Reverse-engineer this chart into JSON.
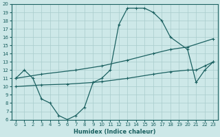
{
  "xlabel": "Humidex (Indice chaleur)",
  "bg_color": "#cde8e8",
  "grid_color": "#a8cccc",
  "line_color": "#1a6060",
  "xlim": [
    -0.5,
    23.5
  ],
  "ylim": [
    6,
    20
  ],
  "xticks": [
    0,
    1,
    2,
    3,
    4,
    5,
    6,
    7,
    8,
    9,
    10,
    11,
    12,
    13,
    14,
    15,
    16,
    17,
    18,
    19,
    20,
    21,
    22,
    23
  ],
  "yticks": [
    6,
    7,
    8,
    9,
    10,
    11,
    12,
    13,
    14,
    15,
    16,
    17,
    18,
    19,
    20
  ],
  "curve1_x": [
    0,
    1,
    2,
    3,
    4,
    5,
    6,
    7,
    8,
    9,
    10,
    11,
    12,
    13,
    14,
    15,
    16,
    17,
    18,
    20,
    21,
    22,
    23
  ],
  "curve1_y": [
    11,
    12,
    11,
    8.5,
    8,
    6.5,
    6,
    6.5,
    7.5,
    10.5,
    11,
    12,
    17.5,
    19.5,
    19.5,
    19.5,
    19,
    18,
    16,
    14.5,
    10.5,
    12,
    13
  ],
  "curve2_x": [
    0,
    3,
    7,
    10,
    13,
    16,
    18,
    20,
    23
  ],
  "curve2_y": [
    11,
    11.5,
    12.0,
    12.5,
    13.2,
    14.0,
    14.5,
    14.8,
    15.8
  ],
  "curve3_x": [
    0,
    3,
    6,
    9,
    10,
    13,
    16,
    18,
    20,
    21,
    22,
    23
  ],
  "curve3_y": [
    10.0,
    10.2,
    10.3,
    10.5,
    10.6,
    11.0,
    11.5,
    11.8,
    12.0,
    12.0,
    12.5,
    13.0
  ]
}
